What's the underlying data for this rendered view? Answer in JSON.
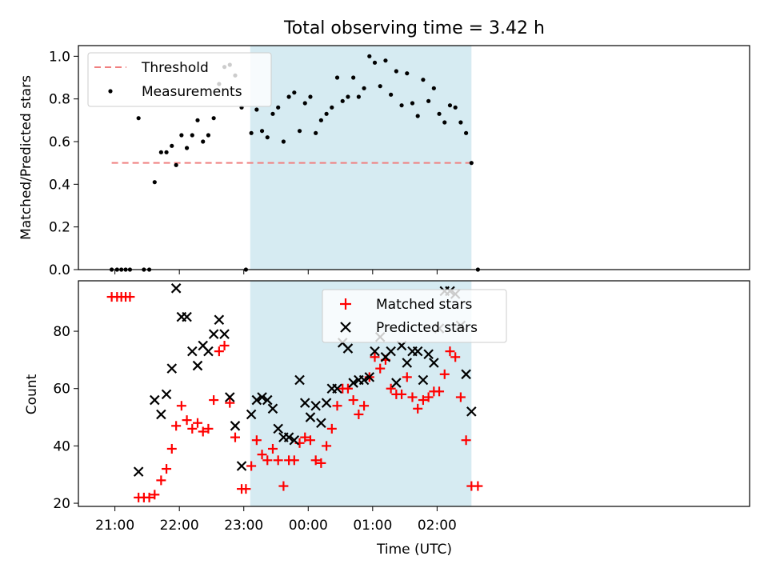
{
  "chart_data": [
    {
      "type": "scatter",
      "title": "Total observing time = 3.42 h",
      "ylabel": "Matched/Predicted stars",
      "xlabel": "",
      "ylim": [
        0,
        1.05
      ],
      "xlim_minutes_from_2100": [
        -34,
        591
      ],
      "yticks": [
        "0.0",
        "0.2",
        "0.4",
        "0.6",
        "0.8",
        "1.0"
      ],
      "shaded_region": {
        "start": "23:06",
        "end": "02:32",
        "color": "#add8e6"
      },
      "legend": {
        "placement": "upper left",
        "entries": [
          {
            "label": "Threshold",
            "style": "dashed-line",
            "color": "#f08080"
          },
          {
            "label": "Measurements",
            "style": "dot",
            "color": "#000000"
          }
        ]
      },
      "threshold": {
        "value": 0.5,
        "x_start": "20:57",
        "x_end": "02:36",
        "color": "#f08080"
      },
      "series": [
        {
          "name": "Measurements",
          "color": "#000000",
          "points": [
            [
              "20:57",
              0.0
            ],
            [
              "21:02",
              0.0
            ],
            [
              "21:06",
              0.0
            ],
            [
              "21:10",
              0.0
            ],
            [
              "21:14",
              0.0
            ],
            [
              "21:22",
              0.71
            ],
            [
              "21:27",
              0.0
            ],
            [
              "21:32",
              0.0
            ],
            [
              "21:37",
              0.41
            ],
            [
              "21:43",
              0.55
            ],
            [
              "21:48",
              0.55
            ],
            [
              "21:53",
              0.58
            ],
            [
              "21:57",
              0.49
            ],
            [
              "22:02",
              0.63
            ],
            [
              "22:07",
              0.57
            ],
            [
              "22:12",
              0.63
            ],
            [
              "22:17",
              0.7
            ],
            [
              "22:22",
              0.6
            ],
            [
              "22:27",
              0.63
            ],
            [
              "22:32",
              0.71
            ],
            [
              "22:37",
              0.87
            ],
            [
              "22:42",
              0.95
            ],
            [
              "22:47",
              0.96
            ],
            [
              "22:52",
              0.91
            ],
            [
              "22:58",
              0.76
            ],
            [
              "23:02",
              0.0
            ],
            [
              "23:07",
              0.64
            ],
            [
              "23:12",
              0.75
            ],
            [
              "23:17",
              0.65
            ],
            [
              "23:22",
              0.62
            ],
            [
              "23:27",
              0.73
            ],
            [
              "23:32",
              0.76
            ],
            [
              "23:37",
              0.6
            ],
            [
              "23:42",
              0.81
            ],
            [
              "23:47",
              0.83
            ],
            [
              "23:52",
              0.65
            ],
            [
              "23:57",
              0.78
            ],
            [
              "00:02",
              0.81
            ],
            [
              "00:07",
              0.64
            ],
            [
              "00:12",
              0.7
            ],
            [
              "00:17",
              0.73
            ],
            [
              "00:22",
              0.76
            ],
            [
              "00:27",
              0.9
            ],
            [
              "00:32",
              0.79
            ],
            [
              "00:37",
              0.81
            ],
            [
              "00:42",
              0.9
            ],
            [
              "00:47",
              0.81
            ],
            [
              "00:52",
              0.85
            ],
            [
              "00:57",
              1.0
            ],
            [
              "01:02",
              0.97
            ],
            [
              "01:07",
              0.86
            ],
            [
              "01:12",
              0.98
            ],
            [
              "01:17",
              0.82
            ],
            [
              "01:22",
              0.93
            ],
            [
              "01:27",
              0.77
            ],
            [
              "01:32",
              0.92
            ],
            [
              "01:37",
              0.78
            ],
            [
              "01:42",
              0.72
            ],
            [
              "01:47",
              0.89
            ],
            [
              "01:52",
              0.79
            ],
            [
              "01:57",
              0.85
            ],
            [
              "02:02",
              0.73
            ],
            [
              "02:07",
              0.69
            ],
            [
              "02:12",
              0.77
            ],
            [
              "02:17",
              0.76
            ],
            [
              "02:22",
              0.69
            ],
            [
              "02:27",
              0.64
            ],
            [
              "02:32",
              0.5
            ],
            [
              "02:38",
              0.0
            ]
          ]
        }
      ]
    },
    {
      "type": "scatter",
      "title": "",
      "xlabel": "Time (UTC)",
      "ylabel": "Count",
      "ylim": [
        18.9,
        97.6
      ],
      "xlim_minutes_from_2100": [
        -34,
        591
      ],
      "xtick_labels": [
        "21:00",
        "22:00",
        "23:00",
        "00:00",
        "01:00",
        "02:00"
      ],
      "yticks": [
        "20",
        "40",
        "60",
        "80"
      ],
      "shaded_region": {
        "start": "23:06",
        "end": "02:32",
        "color": "#add8e6"
      },
      "legend": {
        "placement": "upper center",
        "entries": [
          {
            "label": "Matched stars",
            "style": "plus",
            "color": "#ff0000"
          },
          {
            "label": "Predicted stars",
            "style": "cross",
            "color": "#000000"
          }
        ]
      },
      "series": [
        {
          "name": "Matched stars",
          "color": "#ff0000",
          "points": [
            [
              "20:57",
              92
            ],
            [
              "21:02",
              92
            ],
            [
              "21:06",
              92
            ],
            [
              "21:10",
              92
            ],
            [
              "21:14",
              92
            ],
            [
              "21:22",
              22
            ],
            [
              "21:27",
              22
            ],
            [
              "21:32",
              22
            ],
            [
              "21:37",
              23
            ],
            [
              "21:43",
              28
            ],
            [
              "21:48",
              32
            ],
            [
              "21:53",
              39
            ],
            [
              "21:57",
              47
            ],
            [
              "22:02",
              54
            ],
            [
              "22:07",
              49
            ],
            [
              "22:12",
              46
            ],
            [
              "22:17",
              48
            ],
            [
              "22:22",
              45
            ],
            [
              "22:27",
              46
            ],
            [
              "22:32",
              56
            ],
            [
              "22:37",
              73
            ],
            [
              "22:42",
              75
            ],
            [
              "22:47",
              55
            ],
            [
              "22:52",
              43
            ],
            [
              "22:58",
              25
            ],
            [
              "23:02",
              25
            ],
            [
              "23:07",
              33
            ],
            [
              "23:12",
              42
            ],
            [
              "23:17",
              37
            ],
            [
              "23:22",
              35
            ],
            [
              "23:27",
              39
            ],
            [
              "23:32",
              35
            ],
            [
              "23:37",
              26
            ],
            [
              "23:42",
              35
            ],
            [
              "23:47",
              35
            ],
            [
              "23:52",
              41
            ],
            [
              "23:57",
              43
            ],
            [
              "00:02",
              42
            ],
            [
              "00:07",
              35
            ],
            [
              "00:12",
              34
            ],
            [
              "00:17",
              40
            ],
            [
              "00:22",
              46
            ],
            [
              "00:27",
              54
            ],
            [
              "00:32",
              60
            ],
            [
              "00:37",
              60
            ],
            [
              "00:42",
              56
            ],
            [
              "00:47",
              51
            ],
            [
              "00:52",
              54
            ],
            [
              "00:57",
              64
            ],
            [
              "01:02",
              71
            ],
            [
              "01:07",
              67
            ],
            [
              "01:12",
              70
            ],
            [
              "01:17",
              60
            ],
            [
              "01:22",
              58
            ],
            [
              "01:27",
              58
            ],
            [
              "01:32",
              64
            ],
            [
              "01:37",
              57
            ],
            [
              "01:42",
              53
            ],
            [
              "01:47",
              56
            ],
            [
              "01:52",
              57
            ],
            [
              "01:57",
              59
            ],
            [
              "02:02",
              59
            ],
            [
              "02:07",
              65
            ],
            [
              "02:12",
              73
            ],
            [
              "02:17",
              71
            ],
            [
              "02:22",
              57
            ],
            [
              "02:27",
              42
            ],
            [
              "02:32",
              26
            ],
            [
              "02:38",
              26
            ]
          ]
        },
        {
          "name": "Predicted stars",
          "color": "#000000",
          "points": [
            [
              "21:22",
              31
            ],
            [
              "21:37",
              56
            ],
            [
              "21:43",
              51
            ],
            [
              "21:48",
              58
            ],
            [
              "21:53",
              67
            ],
            [
              "21:57",
              95
            ],
            [
              "22:02",
              85
            ],
            [
              "22:07",
              85
            ],
            [
              "22:12",
              73
            ],
            [
              "22:17",
              68
            ],
            [
              "22:22",
              75
            ],
            [
              "22:27",
              73
            ],
            [
              "22:32",
              79
            ],
            [
              "22:37",
              84
            ],
            [
              "22:42",
              79
            ],
            [
              "22:47",
              57
            ],
            [
              "22:52",
              47
            ],
            [
              "22:58",
              33
            ],
            [
              "23:07",
              51
            ],
            [
              "23:12",
              56
            ],
            [
              "23:17",
              57
            ],
            [
              "23:22",
              56
            ],
            [
              "23:27",
              53
            ],
            [
              "23:32",
              46
            ],
            [
              "23:37",
              43
            ],
            [
              "23:42",
              43
            ],
            [
              "23:47",
              42
            ],
            [
              "23:52",
              63
            ],
            [
              "23:57",
              55
            ],
            [
              "00:02",
              50
            ],
            [
              "00:07",
              54
            ],
            [
              "00:12",
              48
            ],
            [
              "00:17",
              55
            ],
            [
              "00:22",
              60
            ],
            [
              "00:27",
              60
            ],
            [
              "00:32",
              76
            ],
            [
              "00:37",
              74
            ],
            [
              "00:42",
              62
            ],
            [
              "00:47",
              63
            ],
            [
              "00:52",
              63
            ],
            [
              "00:57",
              64
            ],
            [
              "01:02",
              73
            ],
            [
              "01:07",
              78
            ],
            [
              "01:12",
              71
            ],
            [
              "01:17",
              73
            ],
            [
              "01:22",
              62
            ],
            [
              "01:27",
              75
            ],
            [
              "01:32",
              69
            ],
            [
              "01:37",
              73
            ],
            [
              "01:42",
              73
            ],
            [
              "01:47",
              63
            ],
            [
              "01:52",
              72
            ],
            [
              "01:57",
              69
            ],
            [
              "02:02",
              81
            ],
            [
              "02:07",
              94
            ],
            [
              "02:12",
              94
            ],
            [
              "02:17",
              93
            ],
            [
              "02:22",
              82
            ],
            [
              "02:27",
              65
            ],
            [
              "02:32",
              52
            ]
          ]
        }
      ]
    }
  ]
}
